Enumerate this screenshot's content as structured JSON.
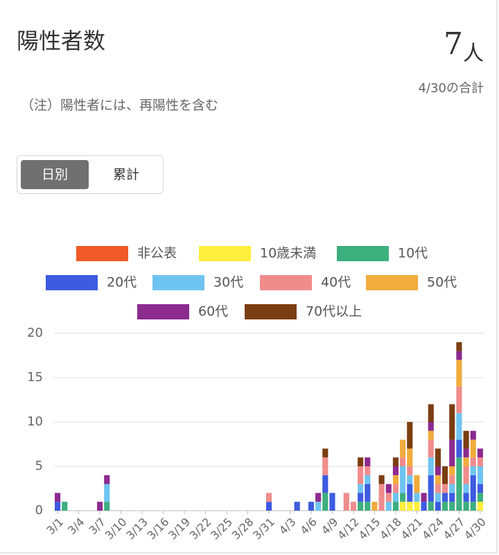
{
  "header": {
    "title": "陽性者数",
    "total": 7,
    "unit": "人",
    "date": "4/30の合計",
    "note": "（注）陽性者には、再陽性を含む"
  },
  "toggle": {
    "options": [
      "日別",
      "累計"
    ]
  },
  "chart_data": {
    "type": "bar",
    "stacked": true,
    "grid": true,
    "categories": [
      "3/1",
      null,
      null,
      "3/4",
      null,
      null,
      "3/7",
      null,
      null,
      "3/10",
      null,
      null,
      "3/13",
      null,
      null,
      "3/16",
      null,
      null,
      "3/19",
      null,
      null,
      "3/22",
      null,
      null,
      "3/25",
      null,
      null,
      "3/28",
      null,
      null,
      "3/31",
      null,
      null,
      "4/3",
      null,
      null,
      "4/6",
      null,
      null,
      "4/9",
      null,
      null,
      "4/12",
      null,
      null,
      "4/15",
      null,
      null,
      "4/18",
      null,
      null,
      "4/21",
      null,
      null,
      "4/24",
      null,
      null,
      "4/27",
      null,
      null,
      "4/30"
    ],
    "ylim": [
      0,
      20
    ],
    "yticks": [
      0,
      5,
      10,
      15,
      20
    ],
    "series": [
      {
        "name": "非公表",
        "color": "#f05a28",
        "values": [
          0,
          0,
          0,
          0,
          0,
          0,
          0,
          0,
          0,
          0,
          0,
          0,
          0,
          0,
          0,
          0,
          0,
          0,
          0,
          0,
          0,
          0,
          0,
          0,
          0,
          0,
          0,
          0,
          0,
          0,
          0,
          0,
          0,
          0,
          0,
          0,
          0,
          0,
          0,
          0,
          0,
          0,
          0,
          0,
          0,
          0,
          0,
          0,
          0,
          0,
          0,
          0,
          0,
          0,
          0,
          0,
          0,
          0,
          0,
          0,
          0
        ]
      },
      {
        "name": "10歳未満",
        "color": "#ffee3b",
        "values": [
          0,
          0,
          0,
          0,
          0,
          0,
          0,
          0,
          0,
          0,
          0,
          0,
          0,
          0,
          0,
          0,
          0,
          0,
          0,
          0,
          0,
          0,
          0,
          0,
          0,
          0,
          0,
          0,
          0,
          0,
          0,
          0,
          0,
          0,
          0,
          0,
          0,
          0,
          0,
          0,
          0,
          0,
          0,
          0,
          0,
          0,
          0,
          0,
          0,
          1,
          1,
          1,
          0,
          0,
          0,
          0,
          0,
          0,
          0,
          0,
          1
        ]
      },
      {
        "name": "10代",
        "color": "#3daf7e",
        "values": [
          0,
          1,
          0,
          0,
          0,
          0,
          0,
          1,
          0,
          0,
          0,
          0,
          0,
          0,
          0,
          0,
          0,
          0,
          0,
          0,
          0,
          0,
          0,
          0,
          0,
          0,
          0,
          0,
          0,
          0,
          0,
          0,
          0,
          0,
          0,
          0,
          0,
          0,
          2,
          0,
          0,
          0,
          0,
          1,
          1,
          0,
          0,
          0,
          1,
          1,
          0,
          0,
          0,
          1,
          0,
          1,
          1,
          6,
          1,
          1,
          1
        ]
      },
      {
        "name": "20代",
        "color": "#3d5be0",
        "values": [
          1,
          0,
          0,
          0,
          0,
          0,
          0,
          0,
          0,
          0,
          0,
          0,
          0,
          0,
          0,
          0,
          0,
          0,
          0,
          0,
          0,
          0,
          0,
          0,
          0,
          0,
          0,
          0,
          0,
          0,
          1,
          0,
          0,
          0,
          1,
          0,
          1,
          0,
          2,
          2,
          0,
          0,
          0,
          1,
          2,
          0,
          0,
          0,
          0,
          0,
          2,
          0,
          1,
          3,
          1,
          1,
          1,
          2,
          1,
          3,
          1
        ]
      },
      {
        "name": "30代",
        "color": "#6ec4f0",
        "values": [
          0,
          0,
          0,
          0,
          0,
          0,
          0,
          2,
          0,
          0,
          0,
          0,
          0,
          0,
          0,
          0,
          0,
          0,
          0,
          0,
          0,
          0,
          0,
          0,
          0,
          0,
          0,
          0,
          0,
          0,
          0,
          0,
          0,
          0,
          0,
          0,
          0,
          1,
          0,
          0,
          0,
          0,
          0,
          1,
          1,
          0,
          0,
          1,
          1,
          3,
          1,
          1,
          0,
          2,
          1,
          0,
          1,
          3,
          1,
          1,
          2
        ]
      },
      {
        "name": "40代",
        "color": "#f08c8c",
        "values": [
          0,
          0,
          0,
          0,
          0,
          0,
          0,
          0,
          0,
          0,
          0,
          0,
          0,
          0,
          0,
          0,
          0,
          0,
          0,
          0,
          0,
          0,
          0,
          0,
          0,
          0,
          0,
          0,
          0,
          0,
          1,
          0,
          0,
          0,
          0,
          0,
          0,
          0,
          2,
          0,
          0,
          2,
          1,
          2,
          1,
          0,
          3,
          1,
          1,
          1,
          1,
          0,
          0,
          2,
          1,
          1,
          1,
          3,
          2,
          1,
          1
        ]
      },
      {
        "name": "50代",
        "color": "#f0ac3c",
        "values": [
          0,
          0,
          0,
          0,
          0,
          0,
          0,
          0,
          0,
          0,
          0,
          0,
          0,
          0,
          0,
          0,
          0,
          0,
          0,
          0,
          0,
          0,
          0,
          0,
          0,
          0,
          0,
          0,
          0,
          0,
          0,
          0,
          0,
          0,
          0,
          0,
          0,
          0,
          0,
          0,
          0,
          0,
          0,
          0,
          0,
          1,
          0,
          0,
          1,
          2,
          2,
          2,
          0,
          1,
          1,
          0,
          1,
          3,
          1,
          2,
          0
        ]
      },
      {
        "name": "60代",
        "color": "#8c2a90",
        "values": [
          1,
          0,
          0,
          0,
          0,
          0,
          1,
          1,
          0,
          0,
          0,
          0,
          0,
          0,
          0,
          0,
          0,
          0,
          0,
          0,
          0,
          0,
          0,
          0,
          0,
          0,
          0,
          0,
          0,
          0,
          0,
          0,
          0,
          0,
          0,
          0,
          0,
          1,
          0,
          0,
          0,
          0,
          0,
          0,
          1,
          0,
          0,
          1,
          1,
          0,
          0,
          0,
          1,
          1,
          1,
          0,
          3,
          1,
          1,
          1,
          1
        ]
      },
      {
        "name": "70代以上",
        "color": "#7a3e12",
        "values": [
          0,
          0,
          0,
          0,
          0,
          0,
          0,
          0,
          0,
          0,
          0,
          0,
          0,
          0,
          0,
          0,
          0,
          0,
          0,
          0,
          0,
          0,
          0,
          0,
          0,
          0,
          0,
          0,
          0,
          0,
          0,
          0,
          0,
          0,
          0,
          0,
          0,
          0,
          1,
          0,
          0,
          0,
          0,
          1,
          0,
          0,
          1,
          0,
          1,
          0,
          3,
          0,
          0,
          2,
          2,
          2,
          4,
          1,
          2,
          0,
          0
        ]
      }
    ]
  }
}
